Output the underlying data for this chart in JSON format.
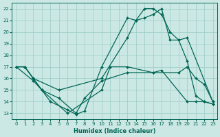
{
  "xlabel": "Humidex (Indice chaleur)",
  "bg_color": "#cce8e4",
  "grid_color": "#99ccc6",
  "line_color": "#006655",
  "xlim": [
    -0.5,
    23.5
  ],
  "ylim": [
    12.5,
    22.5
  ],
  "xticks": [
    0,
    1,
    2,
    3,
    4,
    5,
    6,
    7,
    8,
    9,
    10,
    11,
    12,
    13,
    14,
    15,
    16,
    17,
    18,
    19,
    20,
    21,
    22,
    23
  ],
  "yticks": [
    13,
    14,
    15,
    16,
    17,
    18,
    19,
    20,
    21,
    22
  ],
  "lines": [
    {
      "x": [
        0,
        1,
        2,
        5,
        10,
        13,
        14,
        15,
        16,
        17,
        18,
        19,
        20,
        23
      ],
      "y": [
        17,
        17,
        16,
        15,
        16,
        19.5,
        21,
        21.2,
        21.5,
        22,
        19.3,
        19.3,
        19.5,
        14
      ]
    },
    {
      "x": [
        0,
        1,
        2,
        3,
        6,
        10,
        11,
        13,
        16,
        19,
        20,
        21,
        22,
        23
      ],
      "y": [
        17,
        17,
        16,
        15,
        13,
        15,
        17,
        17,
        16.5,
        16.5,
        17,
        16,
        15.5,
        14
      ]
    },
    {
      "x": [
        0,
        2,
        3,
        5,
        7,
        8,
        10,
        13,
        16,
        17,
        20,
        21,
        22,
        23
      ],
      "y": [
        17,
        15.8,
        15,
        14.3,
        13,
        14.3,
        15.8,
        16.5,
        16.5,
        16.7,
        14,
        14,
        14,
        13.8
      ]
    },
    {
      "x": [
        0,
        1,
        2,
        3,
        4,
        6,
        7,
        8,
        10,
        13,
        14,
        15,
        16,
        17,
        18,
        19,
        20,
        21,
        22,
        23
      ],
      "y": [
        17,
        17,
        16,
        15,
        14,
        13.3,
        12.9,
        13.2,
        17,
        21.2,
        21,
        22,
        22,
        21.5,
        20,
        19.3,
        17.5,
        14.5,
        14,
        13.8
      ]
    }
  ]
}
